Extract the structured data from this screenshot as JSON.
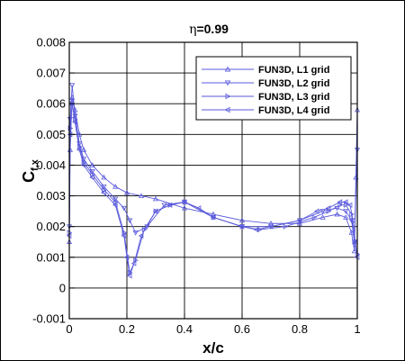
{
  "chart_data": {
    "type": "line",
    "title_symbol": "η",
    "title_value": "=0.99",
    "xlabel": "x/c",
    "ylabel_main": "C",
    "ylabel_sub": "f,x",
    "xlim": [
      0,
      1
    ],
    "ylim": [
      -0.001,
      0.008
    ],
    "xticks": [
      "0",
      "0.2",
      "0.4",
      "0.6",
      "0.8",
      "1"
    ],
    "yticks": [
      "-0.001",
      "0",
      "0.001",
      "0.002",
      "0.003",
      "0.004",
      "0.005",
      "0.006",
      "0.007",
      "0.008"
    ],
    "grid": true,
    "legend_position": "top-right",
    "line_color": "#5a5adc",
    "series": [
      {
        "name": "FUN3D, L1 grid",
        "marker": "triangle-up",
        "x": [
          0.0,
          0.003,
          0.01,
          0.02,
          0.035,
          0.05,
          0.08,
          0.12,
          0.16,
          0.2,
          0.25,
          0.3,
          0.4,
          0.5,
          0.6,
          0.7,
          0.8,
          0.88,
          0.93,
          0.96,
          0.98,
          0.99,
          0.995,
          1.0
        ],
        "y": [
          0.0015,
          0.0045,
          0.0062,
          0.0058,
          0.005,
          0.0045,
          0.004,
          0.0036,
          0.0033,
          0.0031,
          0.003,
          0.0029,
          0.0026,
          0.0024,
          0.0022,
          0.0021,
          0.0021,
          0.0023,
          0.0024,
          0.0023,
          0.0018,
          0.0012,
          0.0036,
          0.0058
        ]
      },
      {
        "name": "FUN3D, L2 grid",
        "marker": "triangle-down",
        "x": [
          0.0,
          0.003,
          0.01,
          0.02,
          0.035,
          0.05,
          0.08,
          0.12,
          0.16,
          0.19,
          0.21,
          0.23,
          0.27,
          0.33,
          0.4,
          0.5,
          0.6,
          0.7,
          0.8,
          0.88,
          0.93,
          0.96,
          0.98,
          0.99,
          1.0
        ],
        "y": [
          0.002,
          0.0055,
          0.0066,
          0.0056,
          0.0047,
          0.0042,
          0.0038,
          0.0033,
          0.0029,
          0.0026,
          0.0022,
          0.0018,
          0.002,
          0.0027,
          0.0028,
          0.0023,
          0.002,
          0.002,
          0.0022,
          0.0025,
          0.0026,
          0.0025,
          0.0022,
          0.0015,
          0.0045
        ]
      },
      {
        "name": "FUN3D, L3 grid",
        "marker": "triangle-right",
        "x": [
          0.0,
          0.003,
          0.01,
          0.02,
          0.035,
          0.05,
          0.08,
          0.12,
          0.16,
          0.19,
          0.21,
          0.23,
          0.26,
          0.3,
          0.35,
          0.4,
          0.5,
          0.6,
          0.66,
          0.75,
          0.85,
          0.9,
          0.94,
          0.96,
          0.98,
          0.99,
          1.0
        ],
        "y": [
          0.0018,
          0.0052,
          0.006,
          0.0055,
          0.0046,
          0.0041,
          0.0037,
          0.0032,
          0.0028,
          0.0018,
          0.0005,
          0.0009,
          0.0019,
          0.0025,
          0.0027,
          0.0028,
          0.0023,
          0.002,
          0.0019,
          0.002,
          0.0023,
          0.0025,
          0.0027,
          0.0027,
          0.0024,
          0.0015,
          0.0011
        ]
      },
      {
        "name": "FUN3D, L4 grid",
        "marker": "triangle-left",
        "x": [
          0.0,
          0.003,
          0.01,
          0.02,
          0.035,
          0.05,
          0.08,
          0.12,
          0.16,
          0.19,
          0.2,
          0.21,
          0.225,
          0.25,
          0.3,
          0.35,
          0.4,
          0.45,
          0.5,
          0.6,
          0.65,
          0.7,
          0.8,
          0.86,
          0.9,
          0.94,
          0.96,
          0.975,
          0.985,
          0.993,
          1.0
        ],
        "y": [
          0.0017,
          0.005,
          0.006,
          0.0054,
          0.0045,
          0.004,
          0.0036,
          0.0031,
          0.0027,
          0.0017,
          0.001,
          0.0004,
          0.0008,
          0.0017,
          0.0025,
          0.0027,
          0.0028,
          0.0026,
          0.0023,
          0.002,
          0.0019,
          0.002,
          0.0022,
          0.0025,
          0.0026,
          0.0028,
          0.0028,
          0.0027,
          0.0022,
          0.0015,
          0.001
        ]
      }
    ]
  }
}
